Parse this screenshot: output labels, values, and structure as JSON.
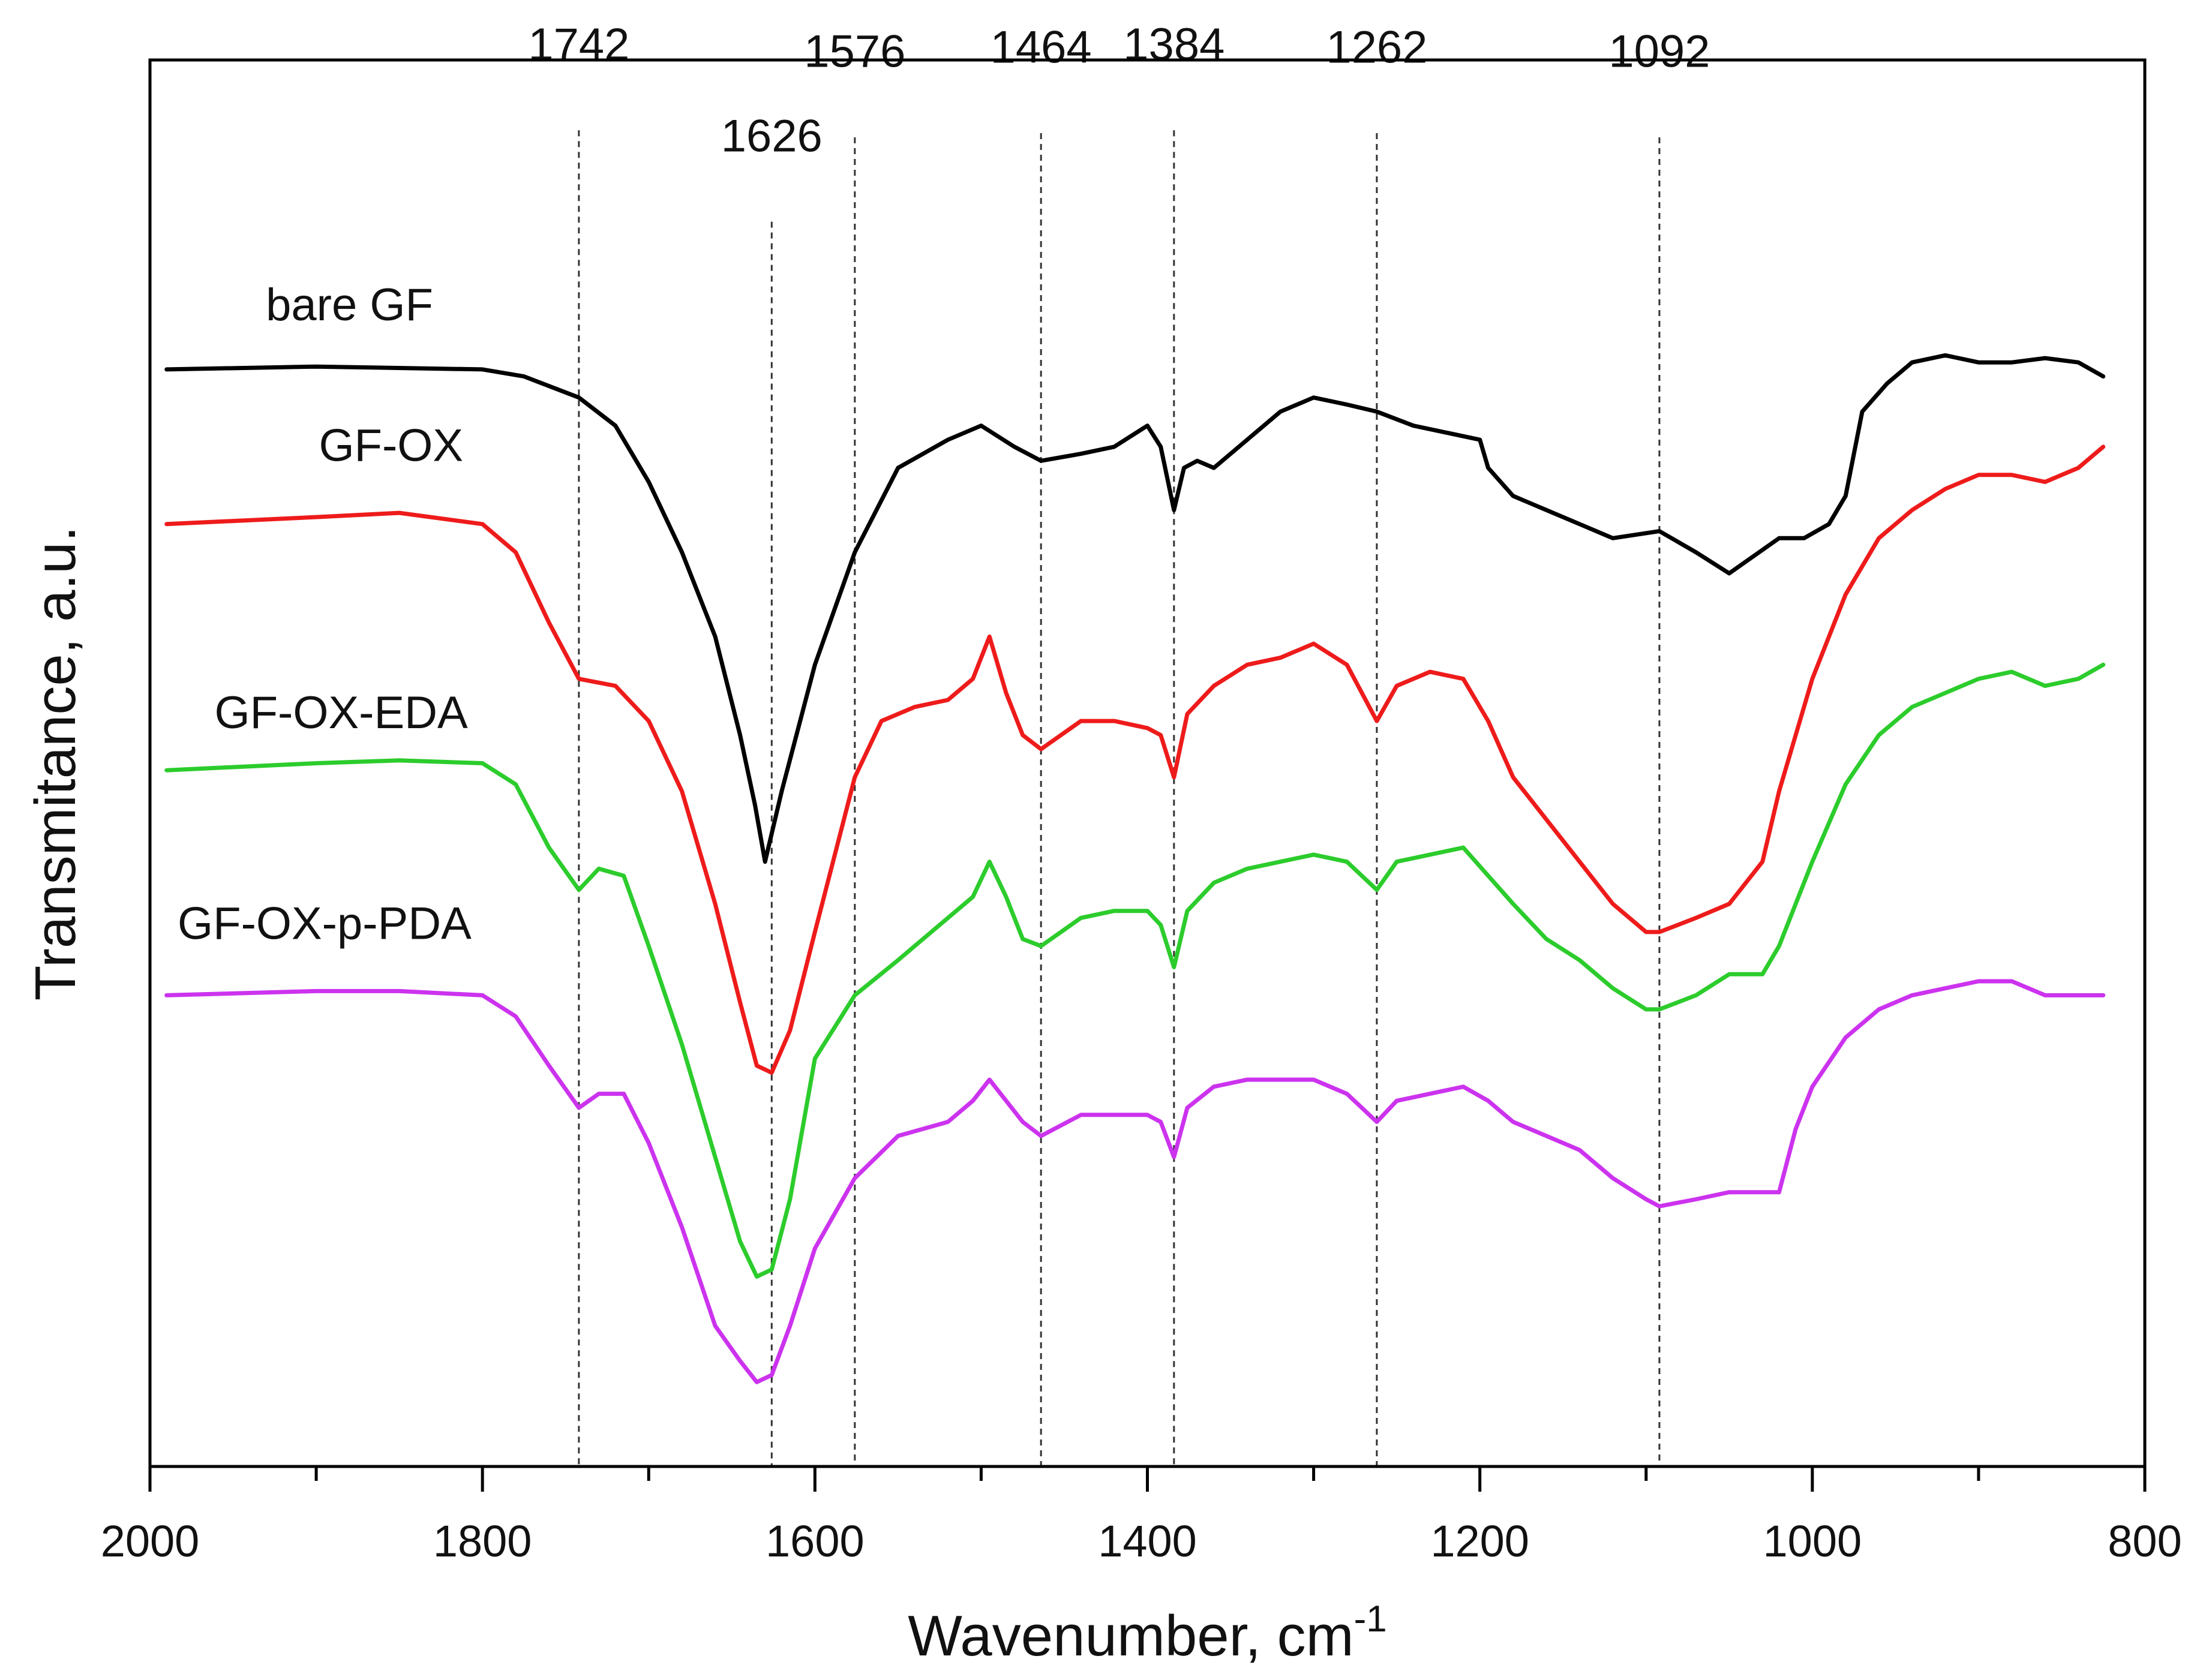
{
  "chart_data": {
    "type": "line",
    "title": "",
    "xlabel": "Wavenumber, cm",
    "xlabel_superscript": "-1",
    "ylabel": "Transmitance, a.u.",
    "xlim": [
      2000,
      800
    ],
    "x_reversed": true,
    "ylim": [
      0,
      10
    ],
    "y_ticks_shown": false,
    "grid": false,
    "x_ticks": [
      2000,
      1800,
      1600,
      1400,
      1200,
      1000,
      800
    ],
    "x_tick_labels": [
      "2000",
      "1800",
      "1600",
      "1400",
      "1200",
      "1000",
      "800"
    ],
    "x_minor_ticks": [
      1900,
      1700,
      1500,
      1300,
      1100,
      900
    ],
    "peak_markers": [
      {
        "x": 1742,
        "label": "1742",
        "label_level": 10.0,
        "line_top": 9.5
      },
      {
        "x": 1626,
        "label": "1626",
        "label_level": 9.35,
        "line_top": 8.85
      },
      {
        "x": 1576,
        "label": "1576",
        "label_level": 9.95,
        "line_top": 9.45
      },
      {
        "x": 1464,
        "label": "1464",
        "label_level": 9.98,
        "line_top": 9.48
      },
      {
        "x": 1384,
        "label": "1384",
        "label_level": 10.0,
        "line_top": 9.5
      },
      {
        "x": 1262,
        "label": "1262",
        "label_level": 9.98,
        "line_top": 9.48
      },
      {
        "x": 1092,
        "label": "1092",
        "label_level": 9.95,
        "line_top": 9.45
      }
    ],
    "series": [
      {
        "name": "bare GF",
        "color": "#000000",
        "label_x": 1880,
        "label_y": 8.15,
        "x": [
          1990,
          1900,
          1800,
          1775,
          1742,
          1720,
          1700,
          1680,
          1660,
          1645,
          1636,
          1630,
          1620,
          1600,
          1576,
          1550,
          1520,
          1500,
          1480,
          1464,
          1440,
          1420,
          1400,
          1392,
          1384,
          1378,
          1370,
          1360,
          1340,
          1320,
          1300,
          1280,
          1262,
          1240,
          1220,
          1200,
          1195,
          1180,
          1160,
          1140,
          1120,
          1092,
          1070,
          1050,
          1020,
          1005,
          990,
          980,
          970,
          955,
          940,
          920,
          900,
          880,
          860,
          840,
          825
        ],
        "y": [
          7.8,
          7.82,
          7.8,
          7.75,
          7.6,
          7.4,
          7.0,
          6.5,
          5.9,
          5.2,
          4.7,
          4.3,
          4.8,
          5.7,
          6.5,
          7.1,
          7.3,
          7.4,
          7.25,
          7.15,
          7.2,
          7.25,
          7.4,
          7.25,
          6.8,
          7.1,
          7.15,
          7.1,
          7.3,
          7.5,
          7.6,
          7.55,
          7.5,
          7.4,
          7.35,
          7.3,
          7.1,
          6.9,
          6.8,
          6.7,
          6.6,
          6.65,
          6.5,
          6.35,
          6.6,
          6.6,
          6.7,
          6.9,
          7.5,
          7.7,
          7.85,
          7.9,
          7.85,
          7.85,
          7.88,
          7.85,
          7.75
        ]
      },
      {
        "name": "GF-OX",
        "color": "#ee1b1b",
        "label_x": 1855,
        "label_y": 7.15,
        "x": [
          1990,
          1900,
          1850,
          1800,
          1780,
          1760,
          1742,
          1720,
          1700,
          1680,
          1660,
          1645,
          1635,
          1626,
          1615,
          1600,
          1576,
          1560,
          1540,
          1520,
          1505,
          1495,
          1485,
          1475,
          1464,
          1440,
          1420,
          1400,
          1392,
          1384,
          1376,
          1360,
          1340,
          1320,
          1300,
          1280,
          1262,
          1250,
          1230,
          1210,
          1195,
          1180,
          1160,
          1140,
          1120,
          1100,
          1092,
          1070,
          1050,
          1030,
          1020,
          1000,
          980,
          960,
          940,
          920,
          900,
          880,
          860,
          840,
          825
        ],
        "y": [
          6.7,
          6.75,
          6.78,
          6.7,
          6.5,
          6.0,
          5.6,
          5.55,
          5.3,
          4.8,
          4.0,
          3.3,
          2.85,
          2.8,
          3.1,
          3.8,
          4.9,
          5.3,
          5.4,
          5.45,
          5.6,
          5.9,
          5.5,
          5.2,
          5.1,
          5.3,
          5.3,
          5.25,
          5.2,
          4.9,
          5.35,
          5.55,
          5.7,
          5.75,
          5.85,
          5.7,
          5.3,
          5.55,
          5.65,
          5.6,
          5.3,
          4.9,
          4.6,
          4.3,
          4.0,
          3.8,
          3.8,
          3.9,
          4.0,
          4.3,
          4.8,
          5.6,
          6.2,
          6.6,
          6.8,
          6.95,
          7.05,
          7.05,
          7.0,
          7.1,
          7.25
        ]
      },
      {
        "name": "GF-OX-EDA",
        "color": "#2ccc2c",
        "label_x": 1885,
        "label_y": 5.25,
        "x": [
          1990,
          1900,
          1850,
          1800,
          1780,
          1760,
          1742,
          1730,
          1715,
          1700,
          1680,
          1660,
          1645,
          1635,
          1626,
          1615,
          1600,
          1576,
          1550,
          1520,
          1505,
          1495,
          1485,
          1475,
          1464,
          1440,
          1420,
          1400,
          1392,
          1384,
          1376,
          1360,
          1340,
          1320,
          1300,
          1280,
          1262,
          1250,
          1230,
          1210,
          1195,
          1180,
          1160,
          1140,
          1120,
          1100,
          1092,
          1070,
          1050,
          1030,
          1020,
          1000,
          980,
          960,
          940,
          920,
          900,
          880,
          860,
          840,
          825
        ],
        "y": [
          4.95,
          5.0,
          5.02,
          5.0,
          4.85,
          4.4,
          4.1,
          4.25,
          4.2,
          3.7,
          3.0,
          2.2,
          1.6,
          1.35,
          1.4,
          1.9,
          2.9,
          3.35,
          3.6,
          3.9,
          4.05,
          4.3,
          4.05,
          3.75,
          3.7,
          3.9,
          3.95,
          3.95,
          3.85,
          3.55,
          3.95,
          4.15,
          4.25,
          4.3,
          4.35,
          4.3,
          4.1,
          4.3,
          4.35,
          4.4,
          4.2,
          4.0,
          3.75,
          3.6,
          3.4,
          3.25,
          3.25,
          3.35,
          3.5,
          3.5,
          3.7,
          4.3,
          4.85,
          5.2,
          5.4,
          5.5,
          5.6,
          5.65,
          5.55,
          5.6,
          5.7
        ]
      },
      {
        "name": "GF-OX-p-PDA",
        "color": "#cc33ee",
        "label_x": 1895,
        "label_y": 3.75,
        "x": [
          1990,
          1900,
          1850,
          1800,
          1780,
          1760,
          1742,
          1730,
          1715,
          1700,
          1680,
          1660,
          1645,
          1635,
          1626,
          1615,
          1600,
          1576,
          1550,
          1520,
          1505,
          1495,
          1485,
          1475,
          1464,
          1440,
          1420,
          1400,
          1392,
          1384,
          1376,
          1360,
          1340,
          1320,
          1300,
          1280,
          1262,
          1250,
          1230,
          1210,
          1195,
          1180,
          1160,
          1140,
          1120,
          1100,
          1092,
          1070,
          1050,
          1030,
          1020,
          1010,
          1000,
          980,
          960,
          940,
          920,
          900,
          880,
          860,
          840,
          825
        ],
        "y": [
          3.35,
          3.38,
          3.38,
          3.35,
          3.2,
          2.85,
          2.55,
          2.65,
          2.65,
          2.3,
          1.7,
          1.0,
          0.75,
          0.6,
          0.65,
          1.0,
          1.55,
          2.05,
          2.35,
          2.45,
          2.6,
          2.75,
          2.6,
          2.45,
          2.35,
          2.5,
          2.5,
          2.5,
          2.45,
          2.2,
          2.55,
          2.7,
          2.75,
          2.75,
          2.75,
          2.65,
          2.45,
          2.6,
          2.65,
          2.7,
          2.6,
          2.45,
          2.35,
          2.25,
          2.05,
          1.9,
          1.85,
          1.9,
          1.95,
          1.95,
          1.95,
          2.4,
          2.7,
          3.05,
          3.25,
          3.35,
          3.4,
          3.45,
          3.45,
          3.35,
          3.35,
          3.35
        ]
      }
    ]
  }
}
